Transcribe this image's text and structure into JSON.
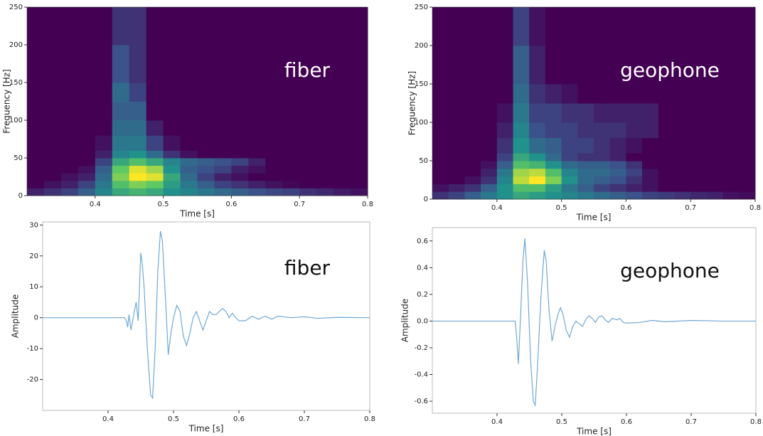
{
  "chart_data": [
    {
      "type": "heatmap",
      "annotation": "fiber",
      "xlabel": "Time [s]",
      "ylabel": "Frequency [Hz]",
      "colormap": "viridis",
      "zlim": [
        0,
        1
      ],
      "xbins": [
        0.3,
        0.325,
        0.35,
        0.375,
        0.4,
        0.425,
        0.45,
        0.475,
        0.5,
        0.525,
        0.55,
        0.575,
        0.6,
        0.625,
        0.65,
        0.675,
        0.7,
        0.725,
        0.75,
        0.775,
        0.8
      ],
      "ybins": [
        0,
        10,
        20,
        30,
        40,
        50,
        60,
        80,
        100,
        125,
        150,
        200,
        250
      ],
      "values": [
        [
          0.1,
          0.15,
          0.2,
          0.3,
          0.45,
          0.6,
          0.65,
          0.6,
          0.5,
          0.45,
          0.4,
          0.35,
          0.3,
          0.25,
          0.22,
          0.2,
          0.15,
          0.12,
          0.08,
          0.05
        ],
        [
          0,
          0.05,
          0.1,
          0.2,
          0.4,
          0.7,
          0.8,
          0.75,
          0.55,
          0.4,
          0.3,
          0.2,
          0.15,
          0.1,
          0.05,
          0.02,
          0,
          0,
          0,
          0
        ],
        [
          0,
          0,
          0.05,
          0.1,
          0.35,
          0.8,
          1,
          0.95,
          0.6,
          0.35,
          0.2,
          0.1,
          0.05,
          0,
          0,
          0,
          0,
          0,
          0,
          0
        ],
        [
          0,
          0,
          0,
          0.05,
          0.3,
          0.75,
          0.95,
          0.85,
          0.5,
          0.3,
          0.25,
          0.2,
          0.1,
          0.05,
          0,
          0,
          0,
          0,
          0,
          0
        ],
        [
          0,
          0,
          0,
          0,
          0.2,
          0.6,
          0.7,
          0.6,
          0.45,
          0.35,
          0.3,
          0.25,
          0.2,
          0.1,
          0,
          0,
          0,
          0,
          0,
          0
        ],
        [
          0,
          0,
          0,
          0,
          0.1,
          0.45,
          0.5,
          0.35,
          0.15,
          0.05,
          0,
          0,
          0,
          0,
          0,
          0,
          0,
          0,
          0,
          0
        ],
        [
          0,
          0,
          0,
          0,
          0.05,
          0.4,
          0.4,
          0.2,
          0.05,
          0,
          0,
          0,
          0,
          0,
          0,
          0,
          0,
          0,
          0,
          0
        ],
        [
          0,
          0,
          0,
          0,
          0,
          0.35,
          0.35,
          0.1,
          0,
          0,
          0,
          0,
          0,
          0,
          0,
          0,
          0,
          0,
          0,
          0
        ],
        [
          0,
          0,
          0,
          0,
          0,
          0.3,
          0.3,
          0,
          0,
          0,
          0,
          0,
          0,
          0,
          0,
          0,
          0,
          0,
          0,
          0
        ],
        [
          0,
          0,
          0,
          0,
          0,
          0.35,
          0.2,
          0,
          0,
          0,
          0,
          0,
          0,
          0,
          0,
          0,
          0,
          0,
          0,
          0
        ],
        [
          0,
          0,
          0,
          0,
          0,
          0.25,
          0.15,
          0,
          0,
          0,
          0,
          0,
          0,
          0,
          0,
          0,
          0,
          0,
          0,
          0
        ],
        [
          0,
          0,
          0,
          0,
          0,
          0.15,
          0.15,
          0,
          0,
          0,
          0,
          0,
          0,
          0,
          0,
          0,
          0,
          0,
          0,
          0
        ]
      ],
      "xlim": [
        0.3,
        0.8
      ],
      "xticks": [
        0.4,
        0.5,
        0.6,
        0.7,
        0.8
      ],
      "ylim": [
        0,
        250
      ],
      "yticks": [
        0,
        50,
        100,
        150,
        200,
        250
      ]
    },
    {
      "type": "heatmap",
      "annotation": "geophone",
      "xlabel": "Time [s]",
      "ylabel": "Frequency [Hz]",
      "colormap": "viridis",
      "zlim": [
        0,
        1
      ],
      "xbins": [
        0.3,
        0.325,
        0.35,
        0.375,
        0.4,
        0.425,
        0.45,
        0.475,
        0.5,
        0.525,
        0.55,
        0.575,
        0.6,
        0.625,
        0.65,
        0.675,
        0.7,
        0.725,
        0.75,
        0.775,
        0.8
      ],
      "ybins": [
        0,
        10,
        20,
        30,
        40,
        50,
        60,
        80,
        100,
        125,
        150,
        200,
        250
      ],
      "values": [
        [
          0.15,
          0.2,
          0.3,
          0.4,
          0.5,
          0.6,
          0.55,
          0.5,
          0.45,
          0.4,
          0.35,
          0.3,
          0.25,
          0.2,
          0.18,
          0.15,
          0.12,
          0.1,
          0.05,
          0.03
        ],
        [
          0.05,
          0.1,
          0.15,
          0.3,
          0.5,
          0.7,
          0.7,
          0.55,
          0.4,
          0.3,
          0.2,
          0.15,
          0.1,
          0.05,
          0,
          0,
          0,
          0,
          0,
          0
        ],
        [
          0,
          0,
          0.05,
          0.15,
          0.45,
          0.9,
          1,
          0.8,
          0.5,
          0.35,
          0.3,
          0.25,
          0.15,
          0.05,
          0,
          0,
          0,
          0,
          0,
          0
        ],
        [
          0,
          0,
          0,
          0.1,
          0.4,
          0.85,
          0.9,
          0.7,
          0.45,
          0.35,
          0.35,
          0.3,
          0.2,
          0.05,
          0,
          0,
          0,
          0,
          0,
          0
        ],
        [
          0,
          0,
          0,
          0.05,
          0.3,
          0.7,
          0.65,
          0.5,
          0.35,
          0.3,
          0.3,
          0.25,
          0.15,
          0,
          0,
          0,
          0,
          0,
          0,
          0
        ],
        [
          0,
          0,
          0,
          0,
          0.2,
          0.6,
          0.5,
          0.35,
          0.2,
          0.15,
          0.15,
          0.1,
          0,
          0,
          0,
          0,
          0,
          0,
          0,
          0
        ],
        [
          0,
          0,
          0,
          0,
          0.15,
          0.5,
          0.35,
          0.3,
          0.2,
          0.2,
          0.15,
          0.1,
          0.05,
          0,
          0,
          0,
          0,
          0,
          0,
          0
        ],
        [
          0,
          0,
          0,
          0,
          0.1,
          0.45,
          0.25,
          0.2,
          0.2,
          0.15,
          0.15,
          0.15,
          0.1,
          0.1,
          0,
          0,
          0,
          0,
          0,
          0
        ],
        [
          0,
          0,
          0,
          0,
          0.05,
          0.4,
          0.2,
          0.2,
          0.15,
          0.15,
          0.1,
          0.1,
          0.1,
          0.1,
          0,
          0,
          0,
          0,
          0,
          0
        ],
        [
          0,
          0,
          0,
          0,
          0,
          0.35,
          0.15,
          0.1,
          0.05,
          0,
          0,
          0,
          0,
          0,
          0,
          0,
          0,
          0,
          0,
          0
        ],
        [
          0,
          0,
          0,
          0,
          0,
          0.3,
          0.1,
          0,
          0,
          0,
          0,
          0,
          0,
          0,
          0,
          0,
          0,
          0,
          0,
          0
        ],
        [
          0,
          0,
          0,
          0,
          0,
          0.2,
          0.05,
          0,
          0,
          0,
          0,
          0,
          0,
          0,
          0,
          0,
          0,
          0,
          0,
          0
        ]
      ],
      "xlim": [
        0.3,
        0.8
      ],
      "xticks": [
        0.4,
        0.5,
        0.6,
        0.7,
        0.8
      ],
      "ylim": [
        0,
        250
      ],
      "yticks": [
        0,
        50,
        100,
        150,
        200,
        250
      ]
    },
    {
      "type": "line",
      "annotation": "fiber",
      "xlabel": "Time [s]",
      "ylabel": "Amplitude",
      "color": "#6fa8d6",
      "x": [
        0.3,
        0.425,
        0.428,
        0.43,
        0.432,
        0.435,
        0.44,
        0.443,
        0.446,
        0.45,
        0.452,
        0.455,
        0.46,
        0.465,
        0.468,
        0.472,
        0.476,
        0.48,
        0.483,
        0.488,
        0.492,
        0.496,
        0.5,
        0.505,
        0.51,
        0.515,
        0.52,
        0.525,
        0.53,
        0.535,
        0.54,
        0.545,
        0.55,
        0.555,
        0.56,
        0.565,
        0.57,
        0.575,
        0.58,
        0.585,
        0.59,
        0.595,
        0.6,
        0.61,
        0.62,
        0.63,
        0.64,
        0.65,
        0.66,
        0.68,
        0.7,
        0.72,
        0.75,
        0.8
      ],
      "values": [
        0,
        0,
        -1,
        -3,
        1,
        -4,
        2,
        5,
        -1,
        21,
        18,
        10,
        -10,
        -25,
        -26,
        -10,
        15,
        28,
        25,
        5,
        -12,
        -5,
        0,
        4,
        2,
        -6,
        -9,
        -5,
        0,
        2,
        -1,
        -4,
        -1,
        2,
        1,
        1,
        2,
        3,
        2,
        0,
        1.5,
        0,
        -1,
        -1,
        0.5,
        -0.5,
        0.5,
        -0.5,
        0.5,
        0,
        0.3,
        -0.2,
        0.1,
        0
      ],
      "xlim": [
        0.3,
        0.8
      ],
      "xticks": [
        0.4,
        0.5,
        0.6,
        0.7,
        0.8
      ],
      "ylim": [
        -30,
        31
      ],
      "yticks": [
        -20,
        -10,
        0,
        10,
        20,
        30
      ]
    },
    {
      "type": "line",
      "annotation": "geophone",
      "xlabel": "Time [s]",
      "ylabel": "Amplitude",
      "color": "#6fa8d6",
      "x": [
        0.3,
        0.428,
        0.43,
        0.433,
        0.436,
        0.44,
        0.443,
        0.447,
        0.452,
        0.456,
        0.459,
        0.463,
        0.468,
        0.473,
        0.476,
        0.48,
        0.485,
        0.489,
        0.494,
        0.498,
        0.502,
        0.507,
        0.512,
        0.517,
        0.522,
        0.527,
        0.532,
        0.537,
        0.542,
        0.547,
        0.552,
        0.557,
        0.562,
        0.567,
        0.572,
        0.578,
        0.585,
        0.59,
        0.595,
        0.6,
        0.62,
        0.64,
        0.66,
        0.7,
        0.75,
        0.8
      ],
      "values": [
        0,
        0,
        -0.1,
        -0.32,
        0,
        0.45,
        0.62,
        0.3,
        -0.3,
        -0.6,
        -0.63,
        -0.3,
        0.2,
        0.53,
        0.45,
        0.1,
        -0.15,
        -0.05,
        0.05,
        0.1,
        0.05,
        -0.07,
        -0.12,
        -0.04,
        0,
        -0.02,
        -0.04,
        0.01,
        0.04,
        0.02,
        -0.01,
        0.03,
        0.04,
        0.01,
        -0.01,
        0.02,
        0.01,
        0.02,
        -0.01,
        -0.015,
        -0.01,
        0.005,
        -0.005,
        0.005,
        0,
        0
      ],
      "xlim": [
        0.3,
        0.8
      ],
      "xticks": [
        0.4,
        0.5,
        0.6,
        0.7,
        0.8
      ],
      "ylim": [
        -0.69,
        0.7
      ],
      "yticks": [
        -0.6,
        -0.4,
        -0.2,
        {
          "value": 0,
          "label": "0.0"
        },
        0.2,
        0.4,
        0.6
      ]
    }
  ]
}
